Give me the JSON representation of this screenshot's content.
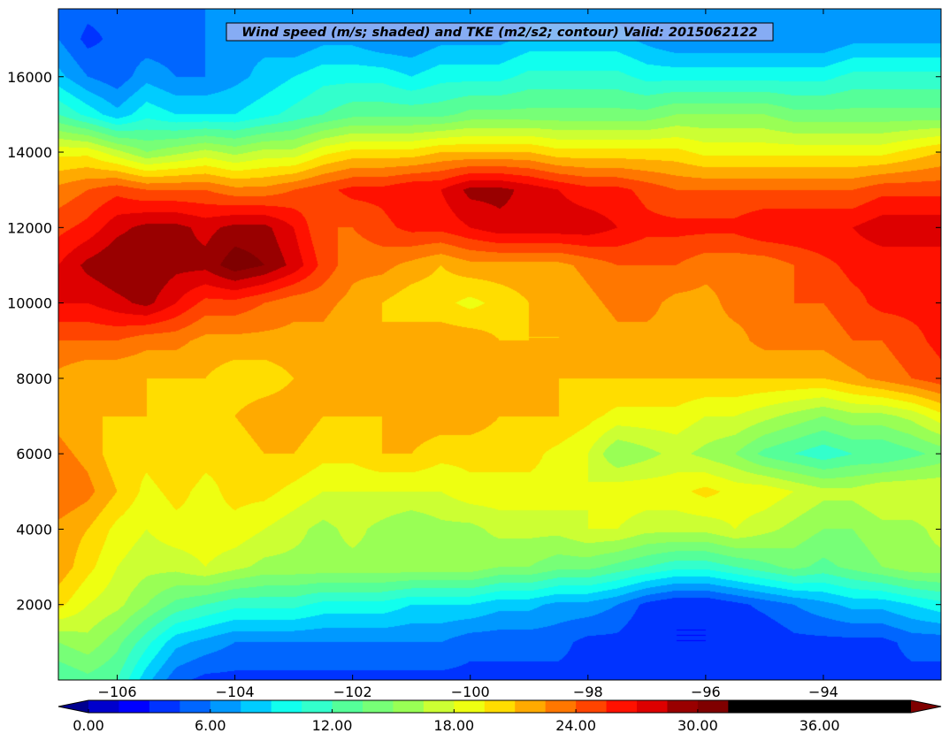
{
  "chart_data": {
    "type": "heatmap",
    "title": "Wind speed (m/s; shaded) and TKE (m2/s2; contour) Valid: 2015062122",
    "xlabel": "",
    "ylabel": "",
    "xlim": [
      -107.0,
      -92.0
    ],
    "ylim": [
      0,
      17800
    ],
    "x_ticks": [
      -106,
      -104,
      -102,
      -100,
      -98,
      -96,
      -94
    ],
    "x_tick_labels": [
      "−106",
      "−104",
      "−102",
      "−100",
      "−98",
      "−96",
      "−94"
    ],
    "y_ticks": [
      2000,
      4000,
      6000,
      8000,
      10000,
      12000,
      14000,
      16000
    ],
    "y_tick_labels": [
      "2000",
      "4000",
      "6000",
      "8000",
      "10000",
      "12000",
      "14000",
      "16000"
    ],
    "colorbar": {
      "levels": [
        0,
        1.5,
        3,
        4.5,
        6,
        7.5,
        9,
        10.5,
        12,
        13.5,
        15,
        16.5,
        18,
        19.5,
        21,
        22.5,
        24,
        25.5,
        27,
        28.5,
        30,
        31.5,
        33,
        34.5,
        36,
        37.5,
        39,
        40.5
      ],
      "tick_values": [
        0,
        6,
        12,
        18,
        24,
        30,
        36
      ],
      "tick_labels": [
        "0.00",
        "6.00",
        "12.00",
        "18.00",
        "24.00",
        "30.00",
        "36.00"
      ],
      "extend": "both",
      "colors": [
        "#00008f",
        "#0000cc",
        "#0000ff",
        "#0033ff",
        "#0066ff",
        "#0099ff",
        "#00ccff",
        "#11ffee",
        "#33ffcc",
        "#55ff99",
        "#77ff77",
        "#99ff55",
        "#ccff33",
        "#eeff11",
        "#ffdd00",
        "#ffaa00",
        "#ff7700",
        "#ff4400",
        "#ff1100",
        "#dd0000",
        "#990000",
        "#7f0000"
      ],
      "colormap": "jet"
    },
    "x_grid": [
      -107.0,
      -106.5,
      -106.0,
      -105.5,
      -105.0,
      -104.5,
      -104.0,
      -103.5,
      -103.0,
      -102.5,
      -102.0,
      -101.5,
      -101.0,
      -100.5,
      -100.0,
      -99.5,
      -99.0,
      -98.5,
      -98.0,
      -97.5,
      -97.0,
      -96.5,
      -96.0,
      -95.5,
      -95.0,
      -94.5,
      -94.0,
      -93.5,
      -93.0,
      -92.5,
      -92.0
    ],
    "y_grid": [
      0,
      1000,
      2000,
      3000,
      4000,
      5000,
      6000,
      7000,
      8000,
      9000,
      10000,
      11000,
      12000,
      13000,
      14000,
      15000,
      16000,
      17000,
      17800
    ],
    "z": [
      [
        12,
        13,
        12,
        8,
        5,
        4,
        4,
        4,
        4,
        4,
        4,
        4,
        4,
        4,
        4,
        4,
        4,
        4,
        4,
        4,
        4,
        4,
        4,
        4,
        4,
        4,
        4,
        4,
        4,
        4,
        4
      ],
      [
        15,
        16,
        14,
        11,
        8,
        7,
        6,
        6,
        6,
        6,
        6,
        6,
        6,
        6,
        5,
        5,
        5,
        5,
        4,
        4,
        3,
        3,
        3,
        3,
        3,
        4,
        4,
        4,
        4,
        5,
        5
      ],
      [
        20,
        18,
        17,
        15,
        13,
        12,
        11,
        11,
        11,
        10,
        10,
        10,
        9,
        9,
        9,
        8,
        8,
        7,
        7,
        6,
        4,
        3,
        3,
        4,
        5,
        6,
        7,
        8,
        8,
        9,
        10
      ],
      [
        22,
        20,
        18,
        17,
        17,
        18,
        17,
        16,
        16,
        16,
        16,
        16,
        16,
        16,
        16,
        15,
        15,
        14,
        14,
        13,
        12,
        11,
        11,
        12,
        13,
        14,
        13,
        14,
        15,
        16,
        16
      ],
      [
        22,
        21,
        19,
        18,
        19,
        19,
        19,
        18,
        17,
        16,
        17,
        16,
        15,
        16,
        16,
        17,
        17,
        17,
        18,
        18,
        17,
        17,
        17,
        18,
        17,
        16,
        15,
        15,
        16,
        16,
        17
      ],
      [
        24,
        23,
        21,
        19,
        20,
        19,
        20,
        20,
        19,
        18,
        18,
        18,
        18,
        18,
        19,
        19,
        19,
        19,
        18,
        19,
        19,
        19,
        20,
        19,
        19,
        18,
        17,
        17,
        18,
        18,
        18
      ],
      [
        23,
        22,
        20,
        20,
        21,
        20,
        20,
        21,
        21,
        20,
        20,
        21,
        21,
        20,
        20,
        20,
        20,
        19,
        18,
        15,
        16,
        17,
        16,
        15,
        13,
        12,
        11,
        12,
        12,
        13,
        14
      ],
      [
        22,
        21,
        21,
        21,
        20,
        21,
        21,
        22,
        22,
        21,
        21,
        21,
        22,
        22,
        22,
        21,
        21,
        21,
        20,
        19,
        19,
        19,
        18,
        18,
        17,
        16,
        15,
        16,
        16,
        17,
        19
      ],
      [
        22,
        21,
        21,
        21,
        21,
        21,
        20,
        20,
        21,
        22,
        21,
        21,
        21,
        22,
        22,
        21,
        21,
        21,
        21,
        21,
        21,
        21,
        21,
        21,
        21,
        21,
        21,
        22,
        23,
        24,
        25
      ],
      [
        24,
        24,
        24,
        23,
        23,
        22,
        22,
        22,
        22,
        22,
        21,
        21,
        22,
        22,
        22,
        21,
        21,
        21,
        21,
        22,
        22,
        22,
        22,
        22,
        23,
        23,
        23,
        24,
        24,
        25,
        26
      ],
      [
        27,
        27,
        28,
        29,
        27,
        25,
        25,
        24,
        23,
        23,
        22,
        21,
        20,
        20,
        19,
        20,
        21,
        21,
        22,
        23,
        23,
        22,
        22,
        23,
        23,
        24,
        24,
        25,
        26,
        26,
        26
      ],
      [
        27,
        29,
        30,
        30,
        29,
        29,
        31,
        30,
        28,
        25,
        23,
        23,
        22,
        21,
        22,
        22,
        22,
        22,
        23,
        24,
        24,
        24,
        23,
        23,
        23,
        24,
        25,
        26,
        26,
        26,
        26
      ],
      [
        25,
        26,
        28,
        29,
        29,
        28,
        29,
        29,
        27,
        24,
        24,
        25,
        26,
        26,
        27,
        28,
        28,
        28,
        28,
        27,
        26,
        26,
        26,
        26,
        27,
        27,
        27,
        27,
        28,
        28,
        28
      ],
      [
        23,
        24,
        25,
        24,
        24,
        24,
        23,
        23,
        24,
        25,
        26,
        26,
        27,
        27,
        29,
        29,
        28,
        27,
        26,
        26,
        25,
        24,
        24,
        24,
        24,
        24,
        24,
        24,
        25,
        25,
        25
      ],
      [
        19,
        19,
        17,
        15,
        16,
        17,
        16,
        17,
        17,
        19,
        20,
        20,
        20,
        21,
        21,
        21,
        21,
        20,
        20,
        20,
        20,
        20,
        19,
        19,
        19,
        19,
        19,
        19,
        19,
        20,
        21
      ],
      [
        12,
        10,
        8,
        10,
        9,
        9,
        9,
        10,
        11,
        12,
        13,
        13,
        13,
        13,
        14,
        14,
        14,
        14,
        14,
        14,
        14,
        15,
        15,
        15,
        15,
        14,
        14,
        14,
        14,
        14,
        14
      ],
      [
        8,
        6,
        5,
        7,
        6,
        6,
        7,
        8,
        9,
        10,
        10,
        10,
        9,
        10,
        10,
        10,
        11,
        11,
        11,
        11,
        10,
        10,
        10,
        10,
        10,
        10,
        10,
        11,
        11,
        11,
        11
      ],
      [
        6,
        4,
        5,
        5,
        5,
        6,
        7,
        7,
        6,
        7,
        7,
        6,
        6,
        7,
        7,
        7,
        8,
        8,
        8,
        8,
        7,
        6,
        6,
        6,
        6,
        6,
        6,
        7,
        7,
        7,
        7
      ],
      [
        6,
        5,
        5,
        6,
        6,
        6,
        7,
        7,
        6,
        6,
        6,
        6,
        6,
        7,
        7,
        7,
        7,
        7,
        7,
        7,
        7,
        6,
        6,
        6,
        6,
        6,
        6,
        6,
        6,
        6,
        6
      ]
    ]
  }
}
